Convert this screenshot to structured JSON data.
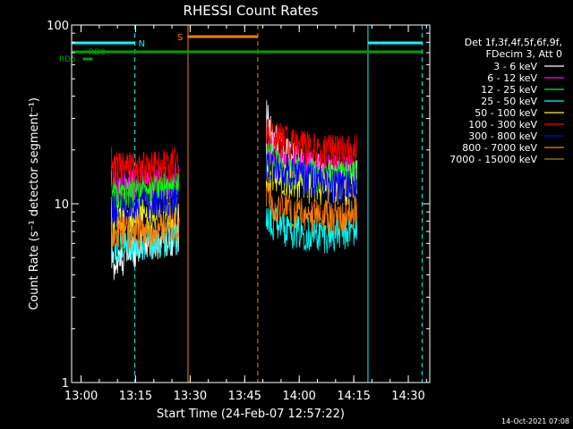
{
  "chart_data": {
    "type": "line",
    "title": "RHESSI Count Rates",
    "xlabel": "Start Time (24-Feb-07 12:57:22)",
    "ylabel": "Count Rate (s⁻¹ detector segment⁻¹)",
    "y_scale": "log",
    "ylim": [
      1,
      100
    ],
    "x_units": "minutes after 12:57:22",
    "xlim": [
      0,
      98.5
    ],
    "x_ticks": [
      {
        "label": "13:00",
        "value": 2.6
      },
      {
        "label": "13:15",
        "value": 17.6
      },
      {
        "label": "13:30",
        "value": 32.6
      },
      {
        "label": "13:45",
        "value": 47.6
      },
      {
        "label": "14:00",
        "value": 62.6
      },
      {
        "label": "14:15",
        "value": 77.6
      },
      {
        "label": "14:30",
        "value": 92.6
      }
    ],
    "y_ticks": [
      {
        "label": "1",
        "value": 1
      },
      {
        "label": "10",
        "value": 10
      },
      {
        "label": "100",
        "value": 100
      }
    ],
    "legend_header": [
      "Det 1f,3f,4f,5f,6f,9f,",
      "FDecim 3, Att 0"
    ],
    "legend_placement": "right",
    "series": [
      {
        "name": "3 - 6 keV",
        "color": "#ffffff",
        "segments": [
          {
            "x": [
              10.9,
              12,
              14,
              16,
              18,
              20,
              22,
              24,
              26,
              28,
              29.5
            ],
            "y": [
              5.0,
              4.5,
              5.0,
              5.5,
              5.8,
              6.0,
              6.2,
              6.3,
              6.5,
              6.6,
              6.8
            ]
          },
          {
            "x": [
              53.5,
              55,
              58,
              61,
              64,
              67,
              70,
              73,
              76,
              78.5
            ],
            "y": [
              32,
              24,
              20,
              18,
              17,
              16,
              15,
              15,
              14.5,
              15
            ]
          }
        ]
      },
      {
        "name": "6 - 12 keV",
        "color": "#ff00ff",
        "segments": [
          {
            "x": [
              10.9,
              14,
              18,
              22,
              26,
              29.5
            ],
            "y": [
              12.5,
              12.5,
              13,
              13,
              13.5,
              14
            ]
          },
          {
            "x": [
              53.5,
              56,
              60,
              64,
              68,
              72,
              76,
              78.5
            ],
            "y": [
              22,
              19,
              17.5,
              16.5,
              16,
              15.5,
              15.5,
              16
            ]
          }
        ]
      },
      {
        "name": "12 - 25 keV",
        "color": "#00ff00",
        "segments": [
          {
            "x": [
              10.9,
              14,
              18,
              22,
              26,
              29.5
            ],
            "y": [
              11.5,
              11.5,
              12,
              12,
              12.5,
              13
            ]
          },
          {
            "x": [
              53.5,
              56,
              60,
              64,
              68,
              72,
              76,
              78.5
            ],
            "y": [
              19,
              17,
              15.5,
              15,
              14.5,
              14.5,
              14,
              14.5
            ]
          }
        ]
      },
      {
        "name": "25 - 50 keV",
        "color": "#00ffff",
        "segments": [
          {
            "x": [
              10.9,
              14,
              18,
              22,
              26,
              29.5
            ],
            "y": [
              5.8,
              5.9,
              6.0,
              6.2,
              6.4,
              6.7
            ]
          },
          {
            "x": [
              53.5,
              56,
              60,
              64,
              68,
              72,
              76,
              78.5
            ],
            "y": [
              8.5,
              7.8,
              7.2,
              7.0,
              6.8,
              6.8,
              7.0,
              7.3
            ]
          }
        ]
      },
      {
        "name": "50 - 100 keV",
        "color": "#ffff00",
        "segments": [
          {
            "x": [
              10.9,
              14,
              18,
              22,
              26,
              29.5
            ],
            "y": [
              8.5,
              8.6,
              8.7,
              8.8,
              9.0,
              9.2
            ]
          },
          {
            "x": [
              53.5,
              56,
              60,
              64,
              68,
              72,
              76,
              78.5
            ],
            "y": [
              15,
              14,
              13.5,
              13,
              12.5,
              12.5,
              12.5,
              13
            ]
          }
        ]
      },
      {
        "name": "100 - 300 keV",
        "color": "#ff0000",
        "segments": [
          {
            "x": [
              10.9,
              14,
              18,
              22,
              26,
              29.5
            ],
            "y": [
              16,
              16,
              16,
              16.5,
              16.5,
              17.5
            ]
          },
          {
            "x": [
              53.5,
              56,
              60,
              64,
              68,
              72,
              76,
              78.5
            ],
            "y": [
              27,
              24,
              22,
              21,
              20.5,
              20,
              20,
              21
            ]
          }
        ]
      },
      {
        "name": "300 - 800 keV",
        "color": "#0000ff",
        "segments": [
          {
            "x": [
              10.9,
              14,
              18,
              22,
              26,
              29.5
            ],
            "y": [
              9.5,
              9.5,
              9.8,
              10,
              10,
              10.5
            ]
          },
          {
            "x": [
              53.5,
              56,
              60,
              64,
              68,
              72,
              76,
              78.5
            ],
            "y": [
              17,
              16,
              15,
              14,
              13.5,
              13,
              12.5,
              13
            ]
          }
        ]
      },
      {
        "name": "800 - 7000 keV",
        "color": "#ff8000",
        "segments": [
          {
            "x": [
              10.9,
              14,
              18,
              22,
              26,
              29.5
            ],
            "y": [
              7.0,
              7.0,
              7.2,
              7.2,
              7.4,
              7.6
            ]
          },
          {
            "x": [
              53.5,
              56,
              60,
              64,
              68,
              72,
              76,
              78.5
            ],
            "y": [
              11,
              10,
              9.2,
              8.8,
              8.6,
              8.6,
              8.8,
              9.2
            ]
          }
        ]
      },
      {
        "name": "7000 - 15000 keV",
        "color": "#b08000",
        "segments": []
      }
    ],
    "annotations": {
      "spacecraft_night": [
        {
          "label": "N",
          "x_start": 0,
          "x_end": 17.4
        },
        {
          "label": "",
          "x_start": 81.5,
          "x_end": 96.4
        }
      ],
      "saa": [
        {
          "label": "S",
          "x_start": 32.0,
          "x_end": 51.2
        }
      ],
      "rate_control_states": [
        {
          "label": "RD0",
          "x_start": 0,
          "x_end": 96.4
        },
        {
          "label": "RD5",
          "x_start": 3.1,
          "x_end": 5.8
        }
      ]
    }
  },
  "footer": {
    "timestamp": "14-Oct-2021 07:08"
  }
}
